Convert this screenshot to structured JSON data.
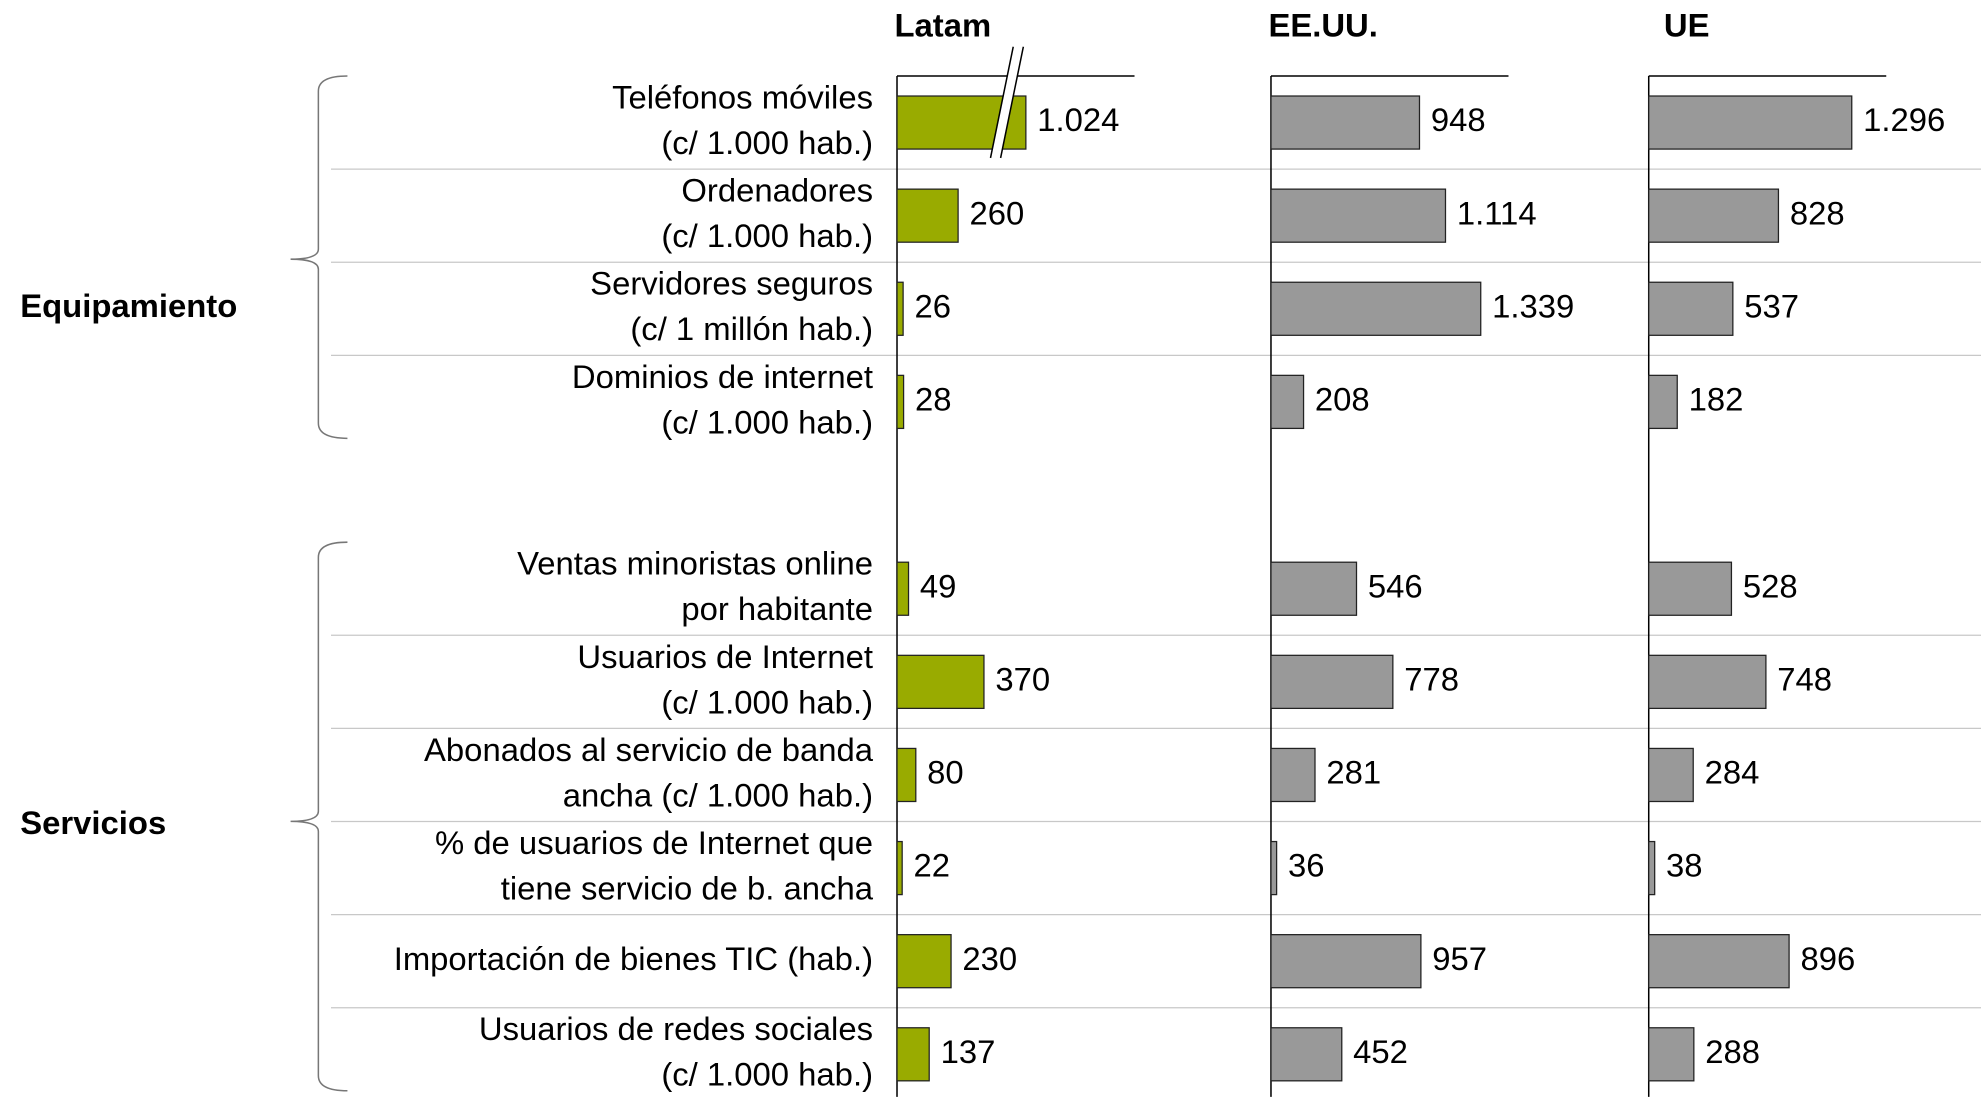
{
  "chart_data": {
    "type": "bar",
    "groups": [
      {
        "name": "Equipamiento",
        "categories": [
          [
            "Teléfonos móviles",
            "(c/ 1.000 hab.)"
          ],
          [
            "Ordenadores",
            "(c/ 1.000 hab.)"
          ],
          [
            "Servidores seguros",
            "(c/ 1 millón hab.)"
          ],
          [
            "Dominios de internet",
            "(c/ 1.000 hab.)"
          ]
        ]
      },
      {
        "name": "Servicios",
        "categories": [
          [
            "Ventas minoristas online",
            "por habitante"
          ],
          [
            "Usuarios de Internet",
            "(c/ 1.000 hab.)"
          ],
          [
            "Abonados al servicio de banda",
            "ancha  (c/ 1.000 hab.)"
          ],
          [
            "% de usuarios de Internet que",
            "tiene servicio de b. ancha"
          ],
          [
            "Importación de bienes TIC (hab.)"
          ],
          [
            "Usuarios de redes sociales",
            "(c/ 1.000 hab.)"
          ]
        ]
      }
    ],
    "series": [
      {
        "name": "Latam",
        "color": "#99ab00",
        "xlim": [
          0,
          1000
        ],
        "axis_break": true,
        "values": [
          [
            1024,
            260,
            26,
            28
          ],
          [
            49,
            370,
            80,
            22,
            230,
            137
          ]
        ],
        "value_labels": [
          [
            "1.024",
            "260",
            "26",
            "28"
          ],
          [
            "49",
            "370",
            "80",
            "22",
            "230",
            "137"
          ]
        ]
      },
      {
        "name": "EE.UU.",
        "color": "#999999",
        "xlim": [
          0,
          1500
        ],
        "values": [
          [
            948,
            1114,
            1339,
            208
          ],
          [
            546,
            778,
            281,
            36,
            957,
            452
          ]
        ],
        "value_labels": [
          [
            "948",
            "1.114",
            "1.339",
            "208"
          ],
          [
            "546",
            "778",
            "281",
            "36",
            "957",
            "452"
          ]
        ]
      },
      {
        "name": "UE",
        "color": "#999999",
        "xlim": [
          0,
          1500
        ],
        "values": [
          [
            1296,
            828,
            537,
            182
          ],
          [
            528,
            748,
            284,
            38,
            896,
            288
          ]
        ],
        "value_labels": [
          [
            "1.296",
            "828",
            "537",
            "182"
          ],
          [
            "528",
            "748",
            "284",
            "38",
            "896",
            "288"
          ]
        ]
      }
    ]
  }
}
